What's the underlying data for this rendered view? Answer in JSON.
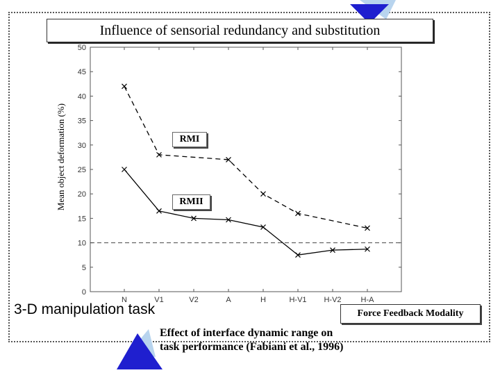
{
  "slide": {
    "task_label": "3-D manipulation task",
    "modality_label": "Force Feedback Modality",
    "caption_line1": "Effect of interface dynamic range on",
    "caption_line2": "task performance (Fabiani et al., 1996)"
  },
  "chart_data": {
    "type": "line",
    "title": "Influence of sensorial redundancy and substitution",
    "xlabel": "Force Feedback Modality",
    "ylabel": "Mean object deformation (%)",
    "ylim": [
      0,
      50
    ],
    "yticks": [
      0,
      5,
      10,
      15,
      20,
      25,
      30,
      35,
      40,
      45,
      50
    ],
    "categories": [
      "N",
      "V1",
      "V2",
      "A",
      "H",
      "H-V1",
      "H-V2",
      "H-A"
    ],
    "series": [
      {
        "name": "RMI",
        "style": "dashed",
        "values": [
          42,
          28,
          null,
          27,
          20,
          16,
          null,
          13
        ]
      },
      {
        "name": "RMII",
        "style": "solid",
        "values": [
          25,
          16.5,
          15,
          14.7,
          13.2,
          7.5,
          8.5,
          8.7
        ]
      }
    ],
    "reference_line": {
      "value": 10,
      "style": "dashed"
    },
    "grid": false
  },
  "colors": {
    "line": "#000000",
    "axis": "#555555",
    "triangle_fill": "#1f1fcf",
    "triangle_shadow": "#b8d4ee"
  }
}
